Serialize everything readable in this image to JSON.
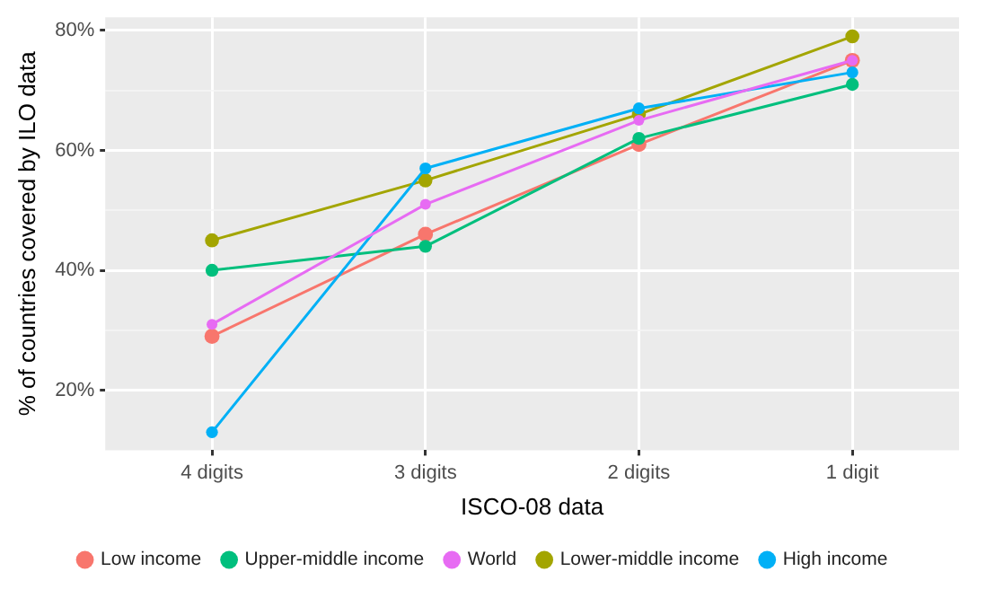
{
  "chart_data": {
    "type": "line",
    "xlabel": "ISCO-08 data",
    "ylabel": "% of countries covered by ILO data",
    "categories": [
      "4 digits",
      "3 digits",
      "2 digits",
      "1 digit"
    ],
    "series": [
      {
        "name": "Low income",
        "color": "#f8766d",
        "values": [
          29,
          46,
          61,
          75
        ]
      },
      {
        "name": "Lower-middle income",
        "color": "#a3a500",
        "values": [
          45,
          55,
          66,
          79
        ]
      },
      {
        "name": "Upper-middle income",
        "color": "#00bf7d",
        "values": [
          40,
          44,
          62,
          71
        ]
      },
      {
        "name": "High income",
        "color": "#00b0f6",
        "values": [
          13,
          57,
          67,
          73
        ]
      },
      {
        "name": "World",
        "color": "#e76bf3",
        "values": [
          31,
          51,
          65,
          75
        ]
      }
    ],
    "ylim": [
      10,
      82.2
    ],
    "yticks": [
      {
        "value": 20,
        "label": "20%"
      },
      {
        "value": 30,
        "label": null
      },
      {
        "value": 40,
        "label": "40%"
      },
      {
        "value": 50,
        "label": null
      },
      {
        "value": 60,
        "label": "60%"
      },
      {
        "value": 70,
        "label": null
      },
      {
        "value": 80,
        "label": "80%"
      }
    ],
    "grid": true,
    "legend": "bottom",
    "marker": "circle",
    "line_style": "solid"
  }
}
